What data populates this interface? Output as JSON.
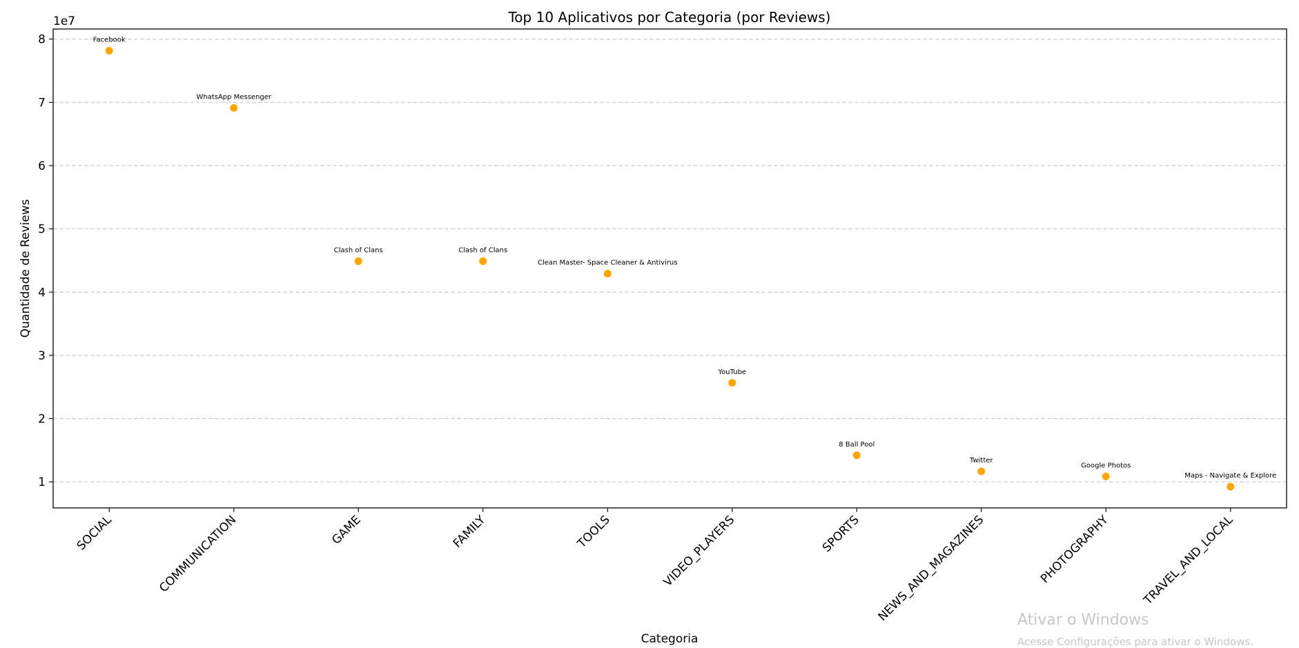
{
  "chart_data": {
    "type": "scatter",
    "title": "Top 10 Aplicativos por Categoria (por Reviews)",
    "xlabel": "Categoria",
    "ylabel": "Quantidade de Reviews",
    "y_offset_label": "1e7",
    "categories": [
      "SOCIAL",
      "COMMUNICATION",
      "GAME",
      "FAMILY",
      "TOOLS",
      "VIDEO_PLAYERS",
      "SPORTS",
      "NEWS_AND_MAGAZINES",
      "PHOTOGRAPHY",
      "TRAVEL_AND_LOCAL"
    ],
    "values": [
      78158306,
      69119316,
      44891723,
      44891723,
      42916526,
      25655305,
      14198297,
      11667403,
      10858556,
      9235373
    ],
    "point_labels": [
      "Facebook",
      "WhatsApp Messenger",
      "Clash of Clans",
      "Clash of Clans",
      "Clean Master- Space Cleaner & Antivirus",
      "YouTube",
      "8 Ball Pool",
      "Twitter",
      "Google Photos",
      "Maps - Navigate & Explore"
    ],
    "yticks": [
      1,
      2,
      3,
      4,
      5,
      6,
      7,
      8
    ],
    "ytick_scale": 10000000,
    "ylim": [
      5880000,
      81600000
    ],
    "grid": "y-dashed",
    "legend": "none",
    "marker_color": "#ffa500"
  },
  "watermark": {
    "title": "Ativar o Windows",
    "subtitle": "Acesse Configurações para ativar o Windows."
  }
}
